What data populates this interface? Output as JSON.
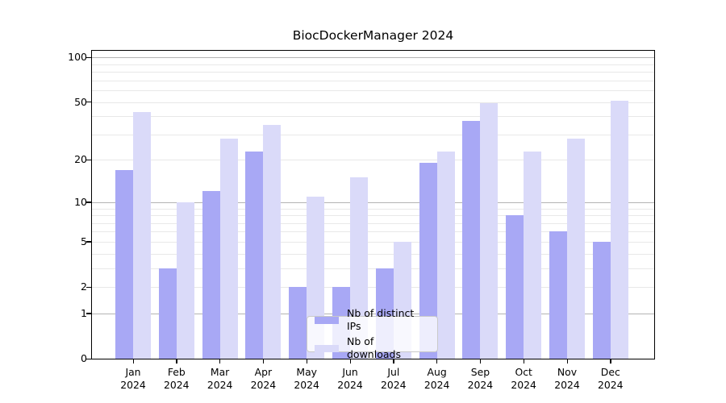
{
  "title": "BiocDockerManager 2024",
  "chart_data": {
    "type": "bar",
    "title": "BiocDockerManager 2024",
    "categories": [
      "Jan 2024",
      "Feb 2024",
      "Mar 2024",
      "Apr 2024",
      "May 2024",
      "Jun 2024",
      "Jul 2024",
      "Aug 2024",
      "Sep 2024",
      "Oct 2024",
      "Nov 2024",
      "Dec 2024"
    ],
    "series": [
      {
        "name": "Nb of distinct IPs",
        "color": "#a8a8f5",
        "values": [
          17,
          3,
          12,
          23,
          2,
          2,
          3,
          19,
          37,
          8,
          6,
          5
        ]
      },
      {
        "name": "Nb of downloads",
        "color": "#dadaf9",
        "values": [
          43,
          10,
          28,
          35,
          11,
          15,
          5,
          23,
          49,
          23,
          28,
          51
        ]
      }
    ],
    "xlabel": "",
    "ylabel": "",
    "yscale": "log1p",
    "ylim": [
      0,
      110
    ],
    "y_ticks": [
      0,
      1,
      2,
      5,
      10,
      20,
      50,
      100
    ],
    "grid_major": [
      1,
      10,
      100
    ],
    "grid_minor": [
      2,
      3,
      4,
      5,
      6,
      7,
      8,
      9,
      20,
      30,
      40,
      50,
      60,
      70,
      80,
      90
    ],
    "legend_position": "lower-center",
    "grid": "on"
  },
  "colors": {
    "distinct_ips": "#a8a8f5",
    "downloads": "#dadaf9",
    "grid_major": "#b3b3b3",
    "grid_minor": "#e8e8e8",
    "axis": "#000000",
    "background": "#ffffff"
  }
}
